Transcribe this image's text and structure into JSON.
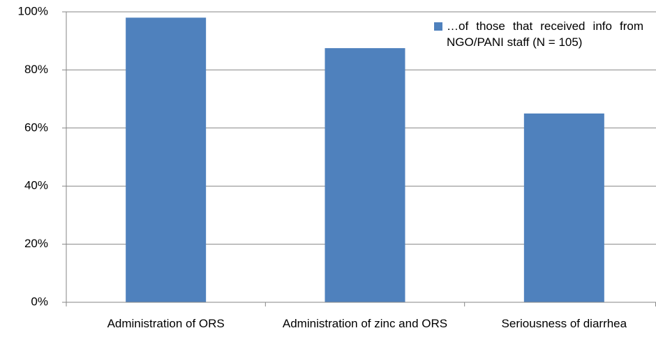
{
  "chart_data": {
    "type": "bar",
    "categories": [
      "Administration of ORS",
      "Administration of zinc and ORS",
      "Seriousness of diarrhea"
    ],
    "series": [
      {
        "name": "…of those that received info from NGO/PANI staff (N = 105)",
        "color": "#4f81bd",
        "values": [
          98,
          87.5,
          65
        ]
      }
    ],
    "ylim": [
      0,
      100
    ],
    "yticks": [
      {
        "value": 0,
        "label": "0%"
      },
      {
        "value": 20,
        "label": "20%"
      },
      {
        "value": 40,
        "label": "40%"
      },
      {
        "value": 60,
        "label": "60%"
      },
      {
        "value": 80,
        "label": "80%"
      },
      {
        "value": 100,
        "label": "100%"
      }
    ],
    "grid": true,
    "legend": "top-right"
  }
}
